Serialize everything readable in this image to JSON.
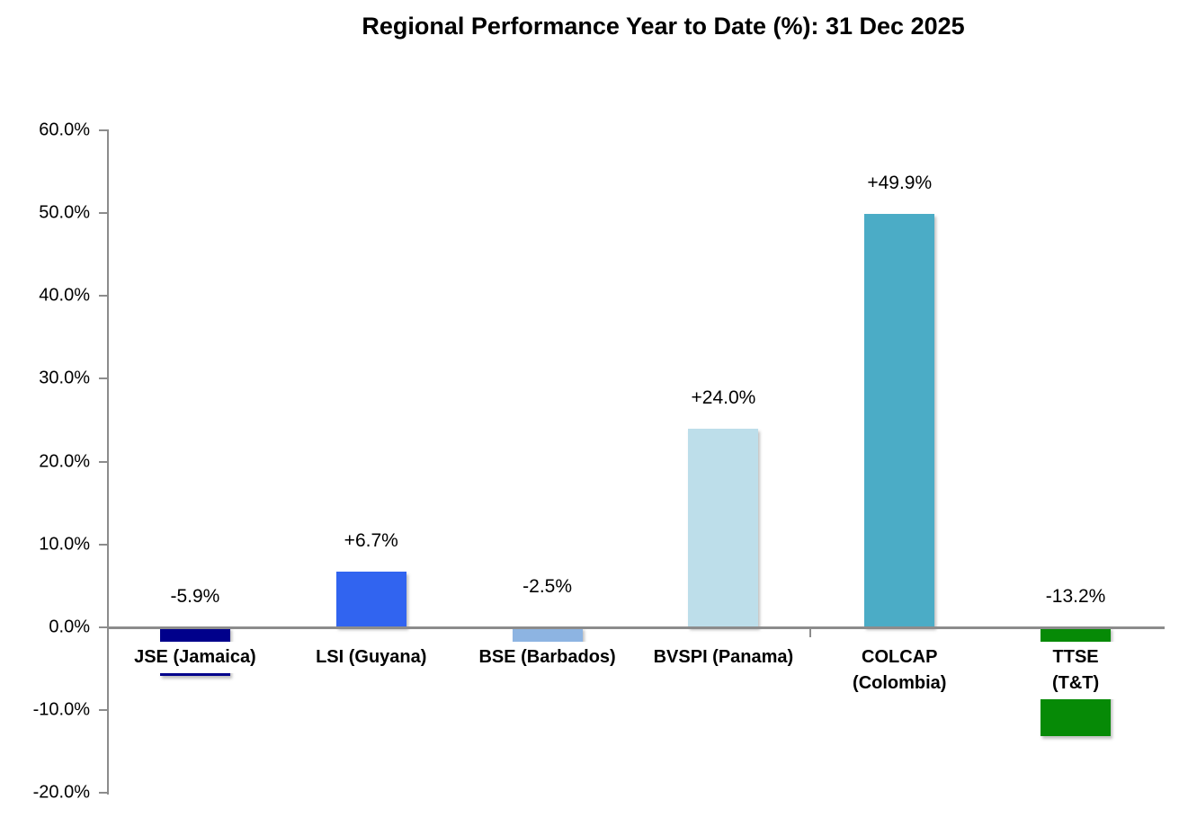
{
  "page": {
    "background": "#FFFFFF"
  },
  "chart_data": {
    "type": "bar",
    "title": "Regional Performance Year to Date (%): 31 Dec 2025",
    "categories": [
      "JSE (Jamaica)",
      "LSI (Guyana)",
      "BSE (Barbados)",
      "BVSPI (Panama)",
      "COLCAP (Colombia)",
      "TTSE (T&T)"
    ],
    "values": [
      -5.9,
      6.7,
      -2.5,
      24.0,
      49.9,
      -13.2
    ],
    "data_labels": [
      "-5.9%",
      "+6.7%",
      "-2.5%",
      "+24.0%",
      "+49.9%",
      "-13.2%"
    ],
    "bar_colors": [
      "#00008B",
      "#3164F0",
      "#8DB4E2",
      "#BDDEEA",
      "#4BACC6",
      "#068A06"
    ],
    "ylim": [
      -20,
      60
    ],
    "ytick_interval": 10,
    "ytick_labels": [
      "60.0%",
      "50.0%",
      "40.0%",
      "30.0%",
      "20.0%",
      "10.0%",
      "0.0%",
      "-10.0%",
      "-20.0%"
    ],
    "xlabel": "",
    "ylabel": "",
    "grid": false,
    "legend": false,
    "axis_color": "#8C8C8C",
    "text_color": "#000000"
  }
}
